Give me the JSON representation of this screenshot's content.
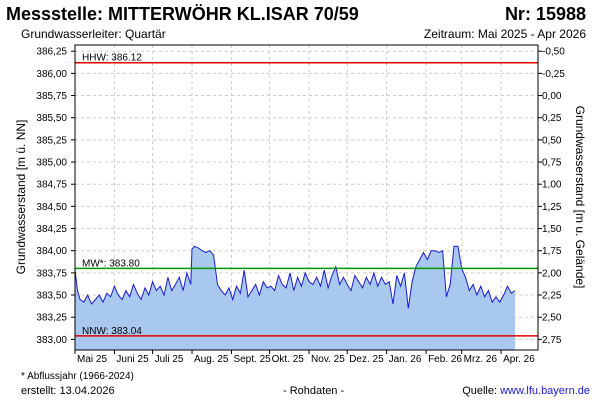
{
  "header": {
    "title": "Messstelle: MITTERWÖHR KL.ISAR 70/59",
    "number": "Nr: 15988",
    "aquifer": "Grundwasserleiter: Quartär",
    "period": "Zeitraum: Mai 2025 - Apr 2026"
  },
  "footer": {
    "footnote": "* Abflussjahr (1966-2024)",
    "created": "erstellt:  13.04.2026",
    "raw": "- Rohdaten -",
    "source_prefix": "Quelle: ",
    "source_link": "www.lfu.bayern.de"
  },
  "colors": {
    "fill": "#a8c8f0",
    "line": "#1a1acc",
    "hhw": "#e00000",
    "nnw": "#e00000",
    "mw": "#009900",
    "grid": "#cccccc"
  },
  "chart_data": {
    "type": "area",
    "ylabel_left": "Grundwasserstand [m ü. NN]",
    "ylabel_right": "Grundwasserstand [m u. Gelände]",
    "ylim": [
      382.88,
      386.32
    ],
    "ylim_right": [
      -0.57,
      2.87
    ],
    "yticks_left": [
      "386,25",
      "386,00",
      "385,75",
      "385,50",
      "385,25",
      "385,00",
      "384,75",
      "384,50",
      "384,25",
      "384,00",
      "383,75",
      "383,50",
      "383,25",
      "383,00"
    ],
    "ytick_values_left": [
      386.25,
      386.0,
      385.75,
      385.5,
      385.25,
      385.0,
      384.75,
      384.5,
      384.25,
      384.0,
      383.75,
      383.5,
      383.25,
      383.0
    ],
    "yticks_right": [
      "-0,50",
      "-0,25",
      "0,00",
      "0,25",
      "0,50",
      "0,75",
      "1,00",
      "1,25",
      "1,50",
      "1,75",
      "2,00",
      "2,25",
      "2,50",
      "2,75"
    ],
    "ytick_values_right": [
      -0.5,
      -0.25,
      0.0,
      0.25,
      0.5,
      0.75,
      1.0,
      1.25,
      1.5,
      1.75,
      2.0,
      2.25,
      2.5,
      2.75
    ],
    "xlim": [
      "2025-05-01",
      "2026-04-30"
    ],
    "xticks": [
      {
        "label": "Mai 25",
        "date": "2025-05-01"
      },
      {
        "label": "Juni 25",
        "date": "2025-06-01"
      },
      {
        "label": "Juli 25",
        "date": "2025-07-01"
      },
      {
        "label": "Aug. 25",
        "date": "2025-08-01"
      },
      {
        "label": "Sept. 25",
        "date": "2025-09-01"
      },
      {
        "label": "Okt. 25",
        "date": "2025-10-01"
      },
      {
        "label": "Nov. 25",
        "date": "2025-11-01"
      },
      {
        "label": "Dez. 25",
        "date": "2025-12-01"
      },
      {
        "label": "Jan. 26",
        "date": "2026-01-01"
      },
      {
        "label": "Feb. 26",
        "date": "2026-02-01"
      },
      {
        "label": "Mrz. 26",
        "date": "2026-03-01"
      },
      {
        "label": "Apr. 26",
        "date": "2026-04-01"
      }
    ],
    "reference_lines": [
      {
        "id": "hhw",
        "label": "HHW: 386.12",
        "value": 386.12
      },
      {
        "id": "mw",
        "label": "MW*: 383.80",
        "value": 383.8
      },
      {
        "id": "nnw",
        "label": "NNW: 383.04",
        "value": 383.04
      }
    ],
    "grid": true,
    "series": [
      {
        "x": [
          "2025-05-01",
          "2025-05-03",
          "2025-05-05",
          "2025-05-08",
          "2025-05-11",
          "2025-05-14",
          "2025-05-17",
          "2025-05-20",
          "2025-05-23",
          "2025-05-26",
          "2025-05-29",
          "2025-06-01",
          "2025-06-04",
          "2025-06-07",
          "2025-06-10",
          "2025-06-13",
          "2025-06-16",
          "2025-06-19",
          "2025-06-22",
          "2025-06-25",
          "2025-06-28",
          "2025-07-01",
          "2025-07-04",
          "2025-07-07",
          "2025-07-10",
          "2025-07-13",
          "2025-07-16",
          "2025-07-19",
          "2025-07-22",
          "2025-07-25",
          "2025-07-28",
          "2025-07-31",
          "2025-08-01",
          "2025-08-03",
          "2025-08-06",
          "2025-08-09",
          "2025-08-12",
          "2025-08-15",
          "2025-08-18",
          "2025-08-21",
          "2025-08-24",
          "2025-08-27",
          "2025-08-30",
          "2025-09-02",
          "2025-09-05",
          "2025-09-08",
          "2025-09-11",
          "2025-09-14",
          "2025-09-17",
          "2025-09-20",
          "2025-09-23",
          "2025-09-26",
          "2025-09-29",
          "2025-10-02",
          "2025-10-05",
          "2025-10-08",
          "2025-10-11",
          "2025-10-14",
          "2025-10-17",
          "2025-10-20",
          "2025-10-23",
          "2025-10-26",
          "2025-10-29",
          "2025-11-01",
          "2025-11-04",
          "2025-11-07",
          "2025-11-10",
          "2025-11-13",
          "2025-11-16",
          "2025-11-19",
          "2025-11-22",
          "2025-11-25",
          "2025-11-28",
          "2025-12-01",
          "2025-12-04",
          "2025-12-07",
          "2025-12-10",
          "2025-12-13",
          "2025-12-16",
          "2025-12-19",
          "2025-12-22",
          "2025-12-25",
          "2025-12-28",
          "2025-12-31",
          "2026-01-03",
          "2026-01-06",
          "2026-01-09",
          "2026-01-12",
          "2026-01-15",
          "2026-01-18",
          "2026-01-21",
          "2026-01-24",
          "2026-01-27",
          "2026-01-30",
          "2026-02-02",
          "2026-02-05",
          "2026-02-08",
          "2026-02-11",
          "2026-02-14",
          "2026-02-17",
          "2026-02-20",
          "2026-02-23",
          "2026-02-26",
          "2026-03-01",
          "2026-03-04",
          "2026-03-07",
          "2026-03-10",
          "2026-03-13",
          "2026-03-16",
          "2026-03-19",
          "2026-03-22",
          "2026-03-25",
          "2026-03-28",
          "2026-03-31",
          "2026-04-03",
          "2026-04-06",
          "2026-04-09",
          "2026-04-12"
        ],
        "y": [
          383.78,
          383.55,
          383.45,
          383.42,
          383.5,
          383.4,
          383.45,
          383.5,
          383.42,
          383.52,
          383.48,
          383.6,
          383.5,
          383.45,
          383.55,
          383.48,
          383.62,
          383.52,
          383.45,
          383.58,
          383.5,
          383.65,
          383.55,
          383.6,
          383.5,
          383.7,
          383.55,
          383.62,
          383.7,
          383.55,
          383.75,
          383.62,
          384.02,
          384.05,
          384.03,
          384.0,
          383.98,
          384.0,
          383.95,
          383.62,
          383.55,
          383.5,
          383.58,
          383.45,
          383.6,
          383.52,
          383.78,
          383.48,
          383.55,
          383.62,
          383.5,
          383.65,
          383.58,
          383.6,
          383.55,
          383.72,
          383.62,
          383.58,
          383.75,
          383.55,
          383.7,
          383.6,
          383.75,
          383.65,
          383.62,
          383.7,
          383.6,
          383.78,
          383.58,
          383.72,
          383.82,
          383.62,
          383.7,
          383.62,
          383.55,
          383.72,
          383.65,
          383.58,
          383.7,
          383.62,
          383.75,
          383.6,
          383.7,
          383.62,
          383.65,
          383.4,
          383.72,
          383.6,
          383.75,
          383.35,
          383.65,
          383.82,
          383.9,
          383.98,
          383.9,
          384.0,
          384.0,
          383.98,
          384.0,
          383.48,
          383.62,
          384.05,
          384.05,
          383.8,
          383.7,
          383.55,
          383.62,
          383.5,
          383.6,
          383.48,
          383.55,
          383.42,
          383.48,
          383.42,
          383.5,
          383.6,
          383.52,
          383.55
        ]
      }
    ]
  }
}
